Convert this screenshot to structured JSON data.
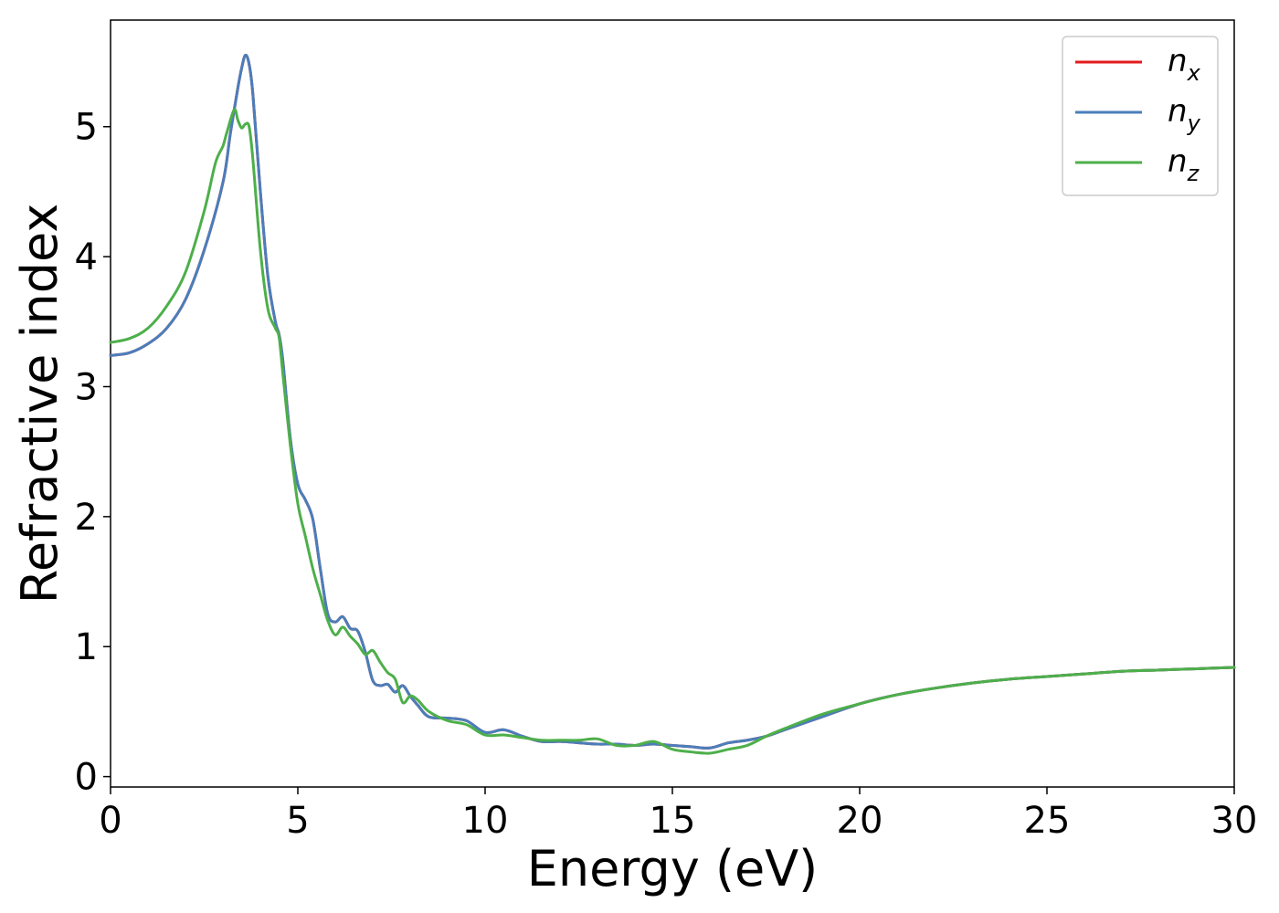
{
  "chart_data": {
    "type": "line",
    "xlabel": "Energy (eV)",
    "ylabel": "Refractive index",
    "xlim": [
      0,
      30
    ],
    "ylim": [
      -0.08,
      5.82
    ],
    "xticks": [
      0,
      5,
      10,
      15,
      20,
      25,
      30
    ],
    "yticks": [
      0,
      1,
      2,
      3,
      4,
      5
    ],
    "grid": false,
    "legend_position": "top-right",
    "series": [
      {
        "name": "n_x",
        "label_main": "n",
        "label_sub": "x",
        "color": "#e41a1c",
        "x": [
          0,
          0.5,
          1,
          1.5,
          2,
          2.5,
          3,
          3.2,
          3.4,
          3.5,
          3.6,
          3.7,
          3.8,
          4.0,
          4.2,
          4.4,
          4.5,
          4.6,
          4.8,
          5.0,
          5.2,
          5.4,
          5.6,
          5.8,
          6.0,
          6.2,
          6.4,
          6.6,
          6.8,
          7.0,
          7.2,
          7.4,
          7.6,
          7.8,
          8.0,
          8.2,
          8.5,
          9.0,
          9.5,
          10.0,
          10.5,
          11.0,
          11.5,
          12.0,
          12.5,
          13.0,
          13.5,
          14.0,
          14.5,
          15.0,
          15.5,
          16.0,
          16.5,
          17.0,
          17.5,
          18.0,
          19.0,
          20.0,
          21.0,
          22.0,
          23.0,
          24.0,
          25.0,
          26.0,
          27.0,
          28.0,
          29.0,
          30.0
        ],
        "y": [
          3.24,
          3.26,
          3.33,
          3.45,
          3.67,
          4.05,
          4.57,
          4.95,
          5.3,
          5.45,
          5.55,
          5.48,
          5.25,
          4.5,
          3.85,
          3.5,
          3.4,
          3.2,
          2.6,
          2.25,
          2.13,
          1.98,
          1.6,
          1.25,
          1.19,
          1.23,
          1.14,
          1.12,
          0.96,
          0.74,
          0.7,
          0.71,
          0.65,
          0.7,
          0.62,
          0.55,
          0.46,
          0.45,
          0.43,
          0.34,
          0.36,
          0.31,
          0.27,
          0.27,
          0.26,
          0.25,
          0.25,
          0.24,
          0.25,
          0.24,
          0.23,
          0.22,
          0.26,
          0.28,
          0.31,
          0.36,
          0.46,
          0.56,
          0.63,
          0.68,
          0.72,
          0.75,
          0.77,
          0.79,
          0.81,
          0.82,
          0.83,
          0.84
        ]
      },
      {
        "name": "n_y",
        "label_main": "n",
        "label_sub": "y",
        "color": "#4a7ebb",
        "x": [
          0,
          0.5,
          1,
          1.5,
          2,
          2.5,
          3,
          3.2,
          3.4,
          3.5,
          3.6,
          3.7,
          3.8,
          4.0,
          4.2,
          4.4,
          4.5,
          4.6,
          4.8,
          5.0,
          5.2,
          5.4,
          5.6,
          5.8,
          6.0,
          6.2,
          6.4,
          6.6,
          6.8,
          7.0,
          7.2,
          7.4,
          7.6,
          7.8,
          8.0,
          8.2,
          8.5,
          9.0,
          9.5,
          10.0,
          10.5,
          11.0,
          11.5,
          12.0,
          12.5,
          13.0,
          13.5,
          14.0,
          14.5,
          15.0,
          15.5,
          16.0,
          16.5,
          17.0,
          17.5,
          18.0,
          19.0,
          20.0,
          21.0,
          22.0,
          23.0,
          24.0,
          25.0,
          26.0,
          27.0,
          28.0,
          29.0,
          30.0
        ],
        "y": [
          3.24,
          3.26,
          3.33,
          3.45,
          3.67,
          4.05,
          4.57,
          4.95,
          5.3,
          5.45,
          5.55,
          5.48,
          5.25,
          4.5,
          3.85,
          3.5,
          3.4,
          3.2,
          2.6,
          2.25,
          2.13,
          1.98,
          1.6,
          1.25,
          1.19,
          1.23,
          1.14,
          1.12,
          0.96,
          0.74,
          0.7,
          0.71,
          0.65,
          0.7,
          0.62,
          0.55,
          0.46,
          0.45,
          0.43,
          0.34,
          0.36,
          0.31,
          0.27,
          0.27,
          0.26,
          0.25,
          0.25,
          0.24,
          0.25,
          0.24,
          0.23,
          0.22,
          0.26,
          0.28,
          0.31,
          0.36,
          0.46,
          0.56,
          0.63,
          0.68,
          0.72,
          0.75,
          0.77,
          0.79,
          0.81,
          0.82,
          0.83,
          0.84
        ]
      },
      {
        "name": "n_z",
        "label_main": "n",
        "label_sub": "z",
        "color": "#4daf4a",
        "x": [
          0,
          0.5,
          1,
          1.5,
          2,
          2.5,
          2.8,
          3.0,
          3.1,
          3.3,
          3.4,
          3.5,
          3.6,
          3.7,
          3.8,
          4.0,
          4.2,
          4.4,
          4.5,
          4.6,
          4.8,
          5.0,
          5.2,
          5.4,
          5.6,
          5.8,
          6.0,
          6.2,
          6.4,
          6.6,
          6.8,
          7.0,
          7.2,
          7.4,
          7.6,
          7.8,
          8.0,
          8.2,
          8.5,
          9.0,
          9.5,
          10.0,
          10.5,
          11.0,
          11.5,
          12.0,
          12.5,
          13.0,
          13.5,
          14.0,
          14.5,
          15.0,
          15.5,
          16.0,
          16.5,
          17.0,
          17.5,
          18.0,
          19.0,
          20.0,
          21.0,
          22.0,
          23.0,
          24.0,
          25.0,
          26.0,
          27.0,
          28.0,
          29.0,
          30.0
        ],
        "y": [
          3.34,
          3.37,
          3.45,
          3.62,
          3.88,
          4.35,
          4.72,
          4.85,
          4.95,
          5.13,
          5.05,
          4.99,
          5.02,
          5.0,
          4.75,
          4.05,
          3.6,
          3.45,
          3.38,
          3.1,
          2.55,
          2.1,
          1.85,
          1.6,
          1.4,
          1.2,
          1.09,
          1.15,
          1.08,
          1.02,
          0.94,
          0.97,
          0.88,
          0.8,
          0.75,
          0.57,
          0.62,
          0.59,
          0.5,
          0.43,
          0.4,
          0.32,
          0.32,
          0.3,
          0.28,
          0.28,
          0.28,
          0.29,
          0.24,
          0.24,
          0.27,
          0.21,
          0.19,
          0.18,
          0.21,
          0.24,
          0.31,
          0.37,
          0.48,
          0.56,
          0.63,
          0.68,
          0.72,
          0.75,
          0.77,
          0.79,
          0.81,
          0.82,
          0.83,
          0.84
        ]
      }
    ]
  }
}
